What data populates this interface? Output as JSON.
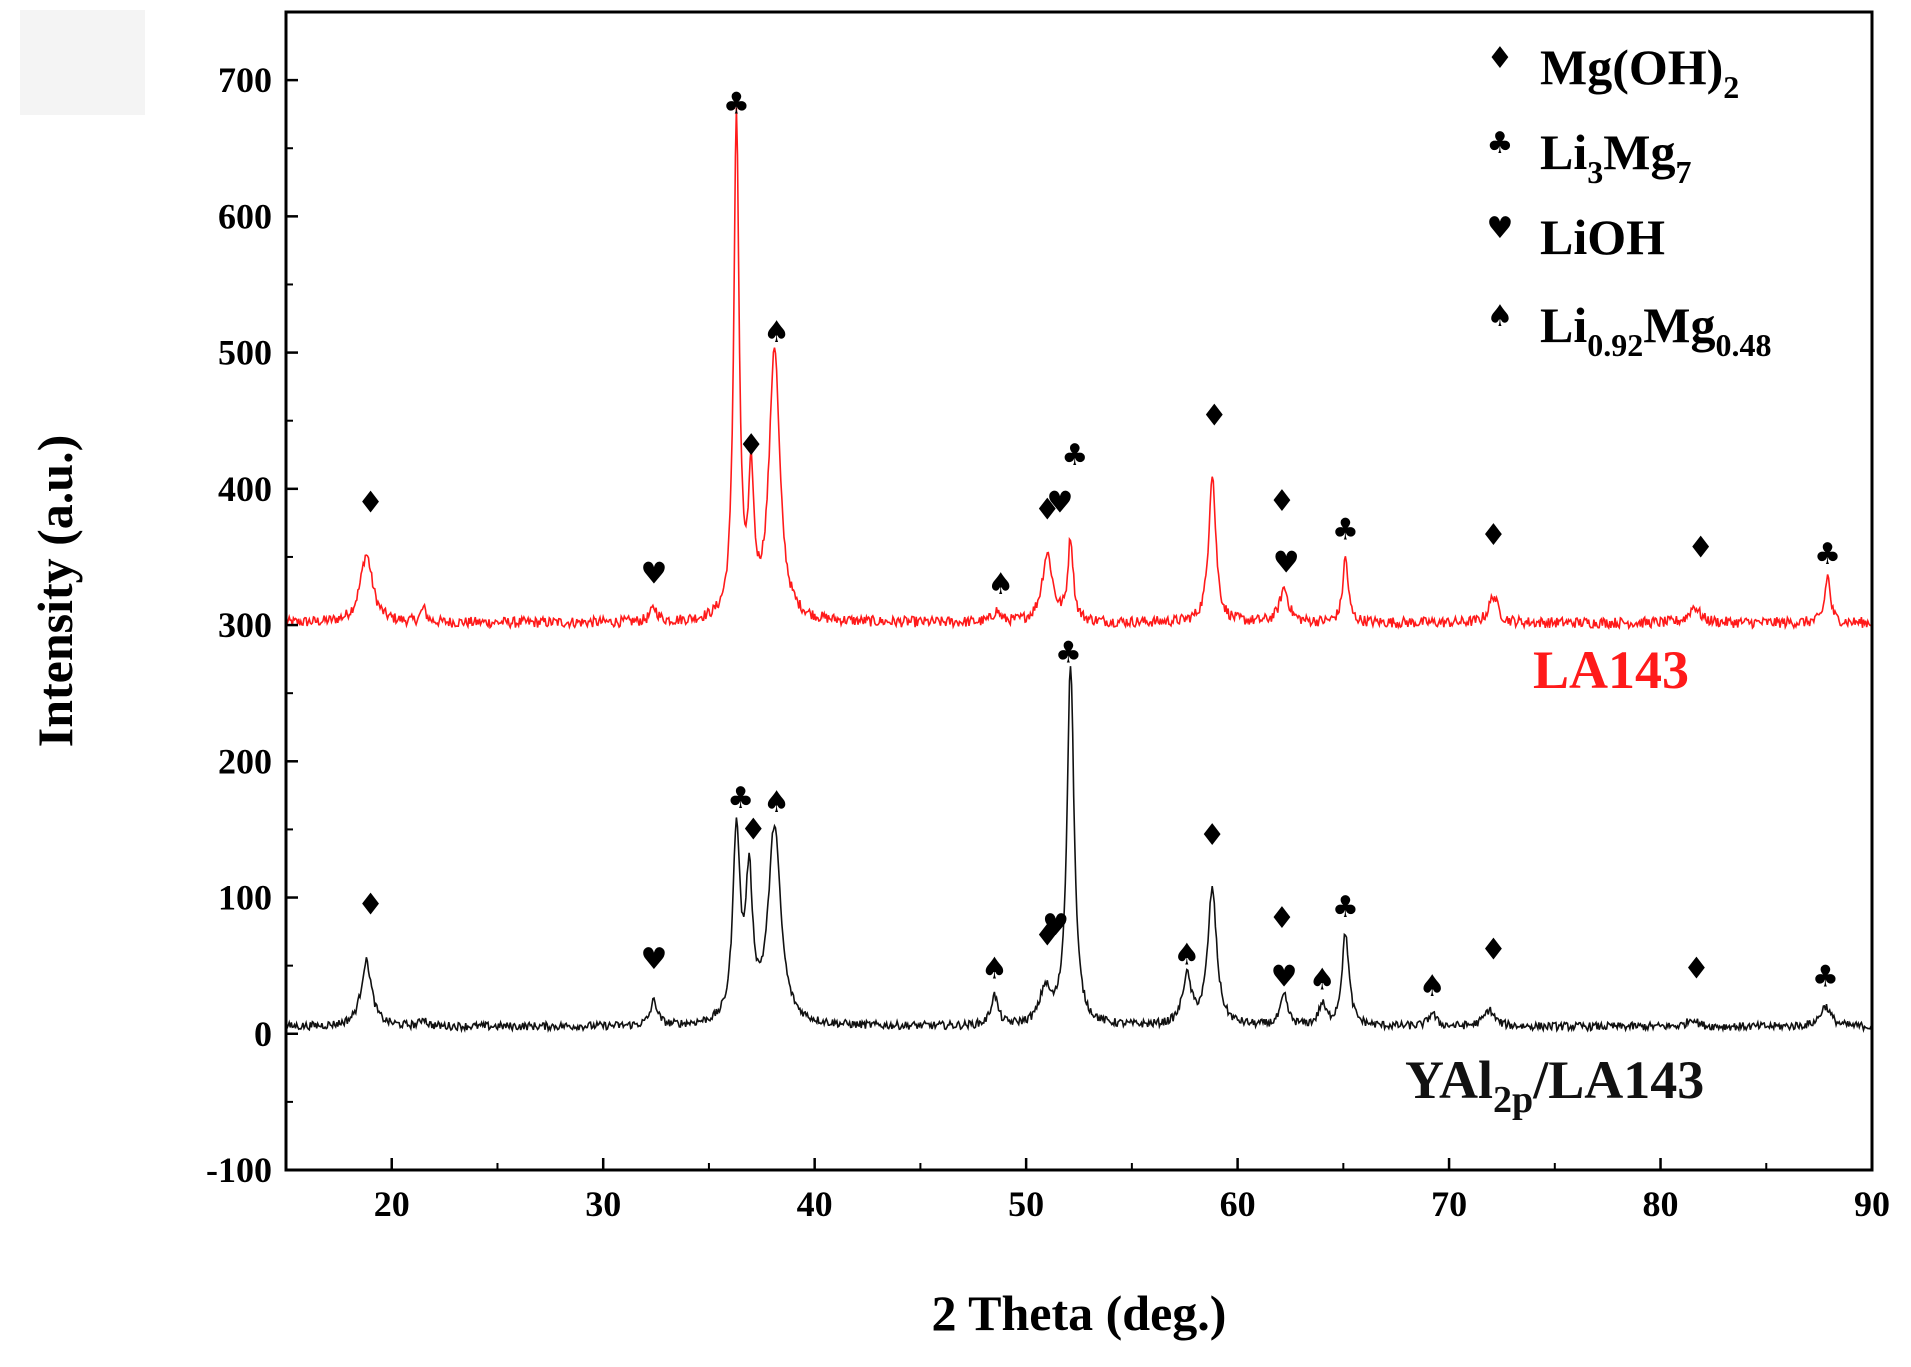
{
  "chart_data": {
    "type": "line",
    "xlabel": "2 Theta (deg.)",
    "ylabel": "Intensity (a.u.)",
    "xlim": [
      15,
      90
    ],
    "ylim": [
      -100,
      750
    ],
    "xticks": [
      20,
      30,
      40,
      50,
      60,
      70,
      80,
      90
    ],
    "yticks": [
      -100,
      0,
      100,
      200,
      300,
      400,
      500,
      600,
      700
    ],
    "legend": {
      "position": "top-right",
      "items": [
        {
          "symbol": "♦",
          "base": "Mg(OH)",
          "parts": [
            {
              "t": "2",
              "sub": true
            }
          ],
          "phase": "Mg(OH)2"
        },
        {
          "symbol": "♣",
          "base": "Li",
          "parts": [
            {
              "t": "3",
              "sub": true
            },
            {
              "t": "Mg",
              "sub": false
            },
            {
              "t": "7",
              "sub": true
            }
          ],
          "phase": "Li3Mg7"
        },
        {
          "symbol": "♥",
          "base": "LiOH",
          "parts": [],
          "phase": "LiOH"
        },
        {
          "symbol": "♠",
          "base": "Li",
          "parts": [
            {
              "t": "0.92",
              "sub": true
            },
            {
              "t": "Mg",
              "sub": false
            },
            {
              "t": "0.48",
              "sub": true
            }
          ],
          "phase": "Li0.92Mg0.48"
        }
      ]
    },
    "series": [
      {
        "name": "LA143",
        "label_main": "LA143",
        "label_sub": "",
        "label_tail": "",
        "color": "#ff1a1a",
        "baseline": 300,
        "noise": 4,
        "peaks": [
          {
            "x": 18.8,
            "h": 50,
            "w": 0.35
          },
          {
            "x": 21.5,
            "h": 10,
            "w": 0.15
          },
          {
            "x": 32.4,
            "h": 10,
            "w": 0.2
          },
          {
            "x": 36.3,
            "h": 370,
            "w": 0.15
          },
          {
            "x": 37.0,
            "h": 95,
            "w": 0.15
          },
          {
            "x": 38.1,
            "h": 200,
            "w": 0.3
          },
          {
            "x": 48.6,
            "h": 8,
            "w": 0.2
          },
          {
            "x": 51.0,
            "h": 50,
            "w": 0.3
          },
          {
            "x": 52.1,
            "h": 60,
            "w": 0.15
          },
          {
            "x": 58.8,
            "h": 110,
            "w": 0.2
          },
          {
            "x": 62.2,
            "h": 25,
            "w": 0.25
          },
          {
            "x": 65.1,
            "h": 48,
            "w": 0.15
          },
          {
            "x": 72.1,
            "h": 20,
            "w": 0.25
          },
          {
            "x": 81.6,
            "h": 12,
            "w": 0.3
          },
          {
            "x": 87.9,
            "h": 35,
            "w": 0.15
          }
        ],
        "markers": [
          {
            "x": 19.0,
            "y": 390,
            "s": "♦"
          },
          {
            "x": 32.4,
            "y": 338,
            "s": "♥"
          },
          {
            "x": 36.3,
            "y": 683,
            "s": "♣"
          },
          {
            "x": 37.0,
            "y": 432,
            "s": "♦"
          },
          {
            "x": 38.2,
            "y": 515,
            "s": "♠"
          },
          {
            "x": 48.8,
            "y": 330,
            "s": "♠"
          },
          {
            "x": 51.0,
            "y": 385,
            "s": "♦"
          },
          {
            "x": 51.6,
            "y": 390,
            "s": "♥"
          },
          {
            "x": 52.3,
            "y": 425,
            "s": "♣"
          },
          {
            "x": 58.9,
            "y": 454,
            "s": "♦"
          },
          {
            "x": 62.1,
            "y": 391,
            "s": "♦"
          },
          {
            "x": 62.3,
            "y": 346,
            "s": "♥"
          },
          {
            "x": 65.1,
            "y": 370,
            "s": "♣"
          },
          {
            "x": 72.1,
            "y": 366,
            "s": "♦"
          },
          {
            "x": 81.9,
            "y": 357,
            "s": "♦"
          },
          {
            "x": 87.9,
            "y": 352,
            "s": "♣"
          }
        ]
      },
      {
        "name": "YAl2p/LA143",
        "label_main": "YAl",
        "label_sub": "2p",
        "label_tail": "/LA143",
        "color": "#111111",
        "baseline": 4,
        "noise": 3,
        "peaks": [
          {
            "x": 18.8,
            "h": 48,
            "w": 0.3
          },
          {
            "x": 21.5,
            "h": 6,
            "w": 0.15
          },
          {
            "x": 32.4,
            "h": 18,
            "w": 0.2
          },
          {
            "x": 36.3,
            "h": 140,
            "w": 0.2
          },
          {
            "x": 36.9,
            "h": 100,
            "w": 0.2
          },
          {
            "x": 38.1,
            "h": 145,
            "w": 0.35
          },
          {
            "x": 48.5,
            "h": 22,
            "w": 0.2
          },
          {
            "x": 50.9,
            "h": 25,
            "w": 0.3
          },
          {
            "x": 52.1,
            "h": 265,
            "w": 0.2
          },
          {
            "x": 57.6,
            "h": 35,
            "w": 0.25
          },
          {
            "x": 58.8,
            "h": 100,
            "w": 0.25
          },
          {
            "x": 62.2,
            "h": 22,
            "w": 0.2
          },
          {
            "x": 64.0,
            "h": 15,
            "w": 0.2
          },
          {
            "x": 65.1,
            "h": 68,
            "w": 0.2
          },
          {
            "x": 69.2,
            "h": 10,
            "w": 0.2
          },
          {
            "x": 71.9,
            "h": 12,
            "w": 0.3
          },
          {
            "x": 81.5,
            "h": 6,
            "w": 0.25
          },
          {
            "x": 87.8,
            "h": 15,
            "w": 0.3
          }
        ],
        "markers": [
          {
            "x": 19.0,
            "y": 95,
            "s": "♦"
          },
          {
            "x": 32.4,
            "y": 55,
            "s": "♥"
          },
          {
            "x": 36.5,
            "y": 173,
            "s": "♣"
          },
          {
            "x": 37.1,
            "y": 150,
            "s": "♦"
          },
          {
            "x": 38.2,
            "y": 170,
            "s": "♠"
          },
          {
            "x": 48.5,
            "y": 48,
            "s": "♠"
          },
          {
            "x": 51.0,
            "y": 72,
            "s": "♦"
          },
          {
            "x": 51.4,
            "y": 80,
            "s": "♥"
          },
          {
            "x": 52.0,
            "y": 280,
            "s": "♣"
          },
          {
            "x": 57.6,
            "y": 58,
            "s": "♠"
          },
          {
            "x": 58.8,
            "y": 146,
            "s": "♦"
          },
          {
            "x": 62.1,
            "y": 85,
            "s": "♦"
          },
          {
            "x": 62.2,
            "y": 42,
            "s": "♥"
          },
          {
            "x": 64.0,
            "y": 40,
            "s": "♠"
          },
          {
            "x": 65.1,
            "y": 93,
            "s": "♣"
          },
          {
            "x": 69.2,
            "y": 35,
            "s": "♠"
          },
          {
            "x": 72.1,
            "y": 62,
            "s": "♦"
          },
          {
            "x": 81.7,
            "y": 48,
            "s": "♦"
          },
          {
            "x": 87.8,
            "y": 42,
            "s": "♣"
          }
        ]
      }
    ]
  }
}
